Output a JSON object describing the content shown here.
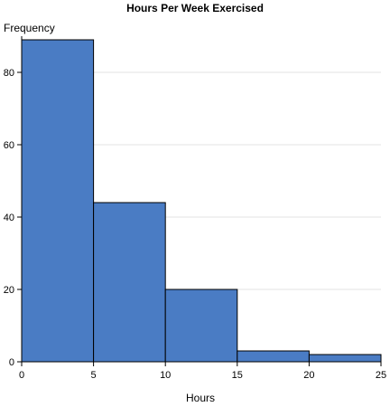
{
  "chart_data": {
    "type": "bar",
    "title": "Hours Per Week Exercised",
    "xlabel": "Hours",
    "ylabel": "Frequency",
    "bins": [
      {
        "x0": 0,
        "x1": 5,
        "value": 89
      },
      {
        "x0": 5,
        "x1": 10,
        "value": 44
      },
      {
        "x0": 10,
        "x1": 15,
        "value": 20
      },
      {
        "x0": 15,
        "x1": 20,
        "value": 3
      },
      {
        "x0": 20,
        "x1": 25,
        "value": 2
      }
    ],
    "xlim": [
      0,
      25
    ],
    "ylim": [
      0,
      90
    ],
    "xticks": [
      "0",
      "5",
      "10",
      "15",
      "20",
      "25"
    ],
    "yticks": [
      "0",
      "20",
      "40",
      "60",
      "80"
    ],
    "grid": true,
    "bar_color": "#4a7cc4"
  }
}
